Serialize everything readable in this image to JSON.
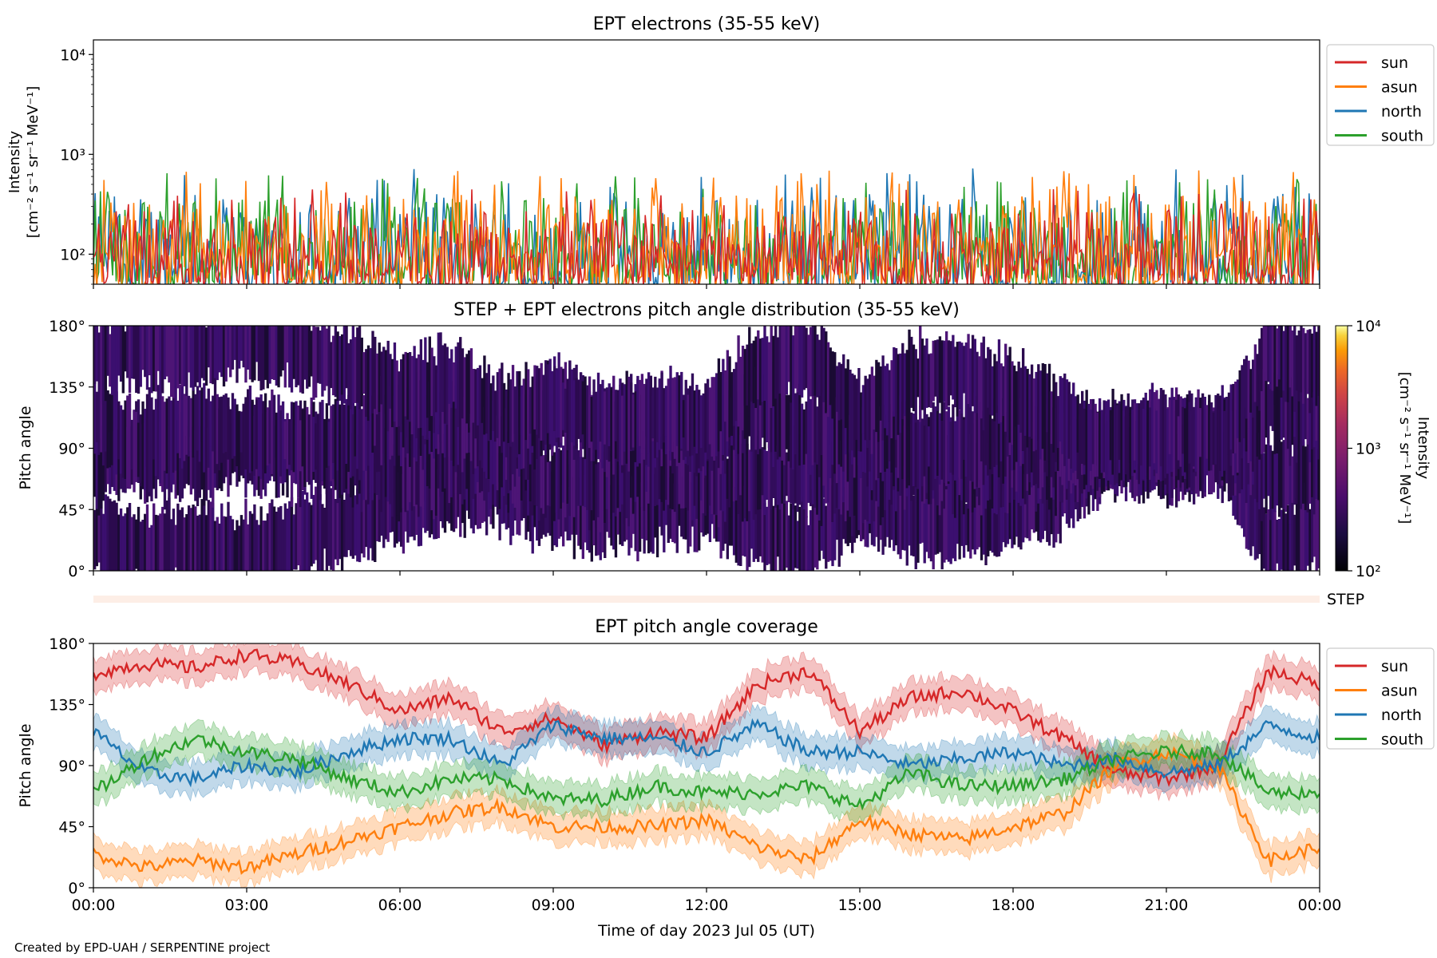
{
  "figure": {
    "footer": "Created by EPD-UAH / SERPENTINE project"
  },
  "colors": {
    "sun": "#d62728",
    "asun": "#ff7f0e",
    "north": "#1f77b4",
    "south": "#2ca02c",
    "pad_fill": "#3b0f6f",
    "step_band": "#fdeee6"
  },
  "chart_data": [
    {
      "type": "line",
      "title": "EPT electrons (35-55 keV)",
      "ylabel_line1": "Intensity",
      "ylabel_line2": "[cm⁻² s⁻¹ sr⁻¹ MeV⁻¹]",
      "yscale": "log",
      "ylim": [
        50,
        14000
      ],
      "ytick_labels": [
        "10²",
        "10³",
        "10⁴"
      ],
      "ytick_values": [
        100,
        1000,
        10000
      ],
      "legend_position": "outside-right-top",
      "series": [
        {
          "name": "sun",
          "color": "#d62728",
          "typical_range": [
            50,
            450
          ]
        },
        {
          "name": "asun",
          "color": "#ff7f0e",
          "typical_range": [
            50,
            700
          ]
        },
        {
          "name": "north",
          "color": "#1f77b4",
          "typical_range": [
            50,
            750
          ]
        },
        {
          "name": "south",
          "color": "#2ca02c",
          "typical_range": [
            50,
            650
          ]
        }
      ]
    },
    {
      "type": "heatmap",
      "title": "STEP + EPT electrons pitch angle distribution (35-55 keV)",
      "ylabel": "Pitch angle",
      "ylim": [
        0,
        180
      ],
      "ytick_labels": [
        "0°",
        "45°",
        "90°",
        "135°",
        "180°"
      ],
      "ytick_values": [
        0,
        45,
        90,
        135,
        180
      ],
      "colorbar": {
        "label_line1": "Intensity",
        "label_line2": "[cm⁻² s⁻¹ sr⁻¹ MeV⁻¹]",
        "scale": "log",
        "range": [
          100,
          10000
        ],
        "tick_labels": [
          "10²",
          "10³",
          "10⁴"
        ]
      },
      "step_label": "STEP"
    },
    {
      "type": "line",
      "title": "EPT pitch angle coverage",
      "ylabel": "Pitch angle",
      "xlabel": "Time of day 2023 Jul 05 (UT)",
      "xlim_hours": [
        0,
        24
      ],
      "xtick_labels": [
        "00:00",
        "03:00",
        "06:00",
        "09:00",
        "12:00",
        "15:00",
        "18:00",
        "21:00",
        "00:00"
      ],
      "ylim": [
        0,
        180
      ],
      "ytick_labels": [
        "0°",
        "45°",
        "90°",
        "135°",
        "180°"
      ],
      "ytick_values": [
        0,
        45,
        90,
        135,
        180
      ],
      "legend_position": "outside-right-top",
      "band_halfwidth_deg": 12,
      "x_hours": [
        0,
        1,
        2,
        3,
        4,
        5,
        6,
        7,
        8,
        9,
        10,
        11,
        12,
        13,
        14,
        15,
        16,
        17,
        18,
        19,
        20,
        21,
        22,
        23,
        24
      ],
      "series": [
        {
          "name": "sun",
          "color": "#d62728",
          "values": [
            158,
            165,
            162,
            172,
            165,
            150,
            130,
            140,
            115,
            125,
            105,
            115,
            110,
            150,
            160,
            115,
            140,
            145,
            130,
            110,
            85,
            80,
            90,
            160,
            150
          ]
        },
        {
          "name": "asun",
          "color": "#ff7f0e",
          "values": [
            25,
            15,
            20,
            15,
            25,
            35,
            45,
            55,
            60,
            45,
            45,
            45,
            50,
            30,
            20,
            50,
            40,
            35,
            45,
            55,
            90,
            100,
            90,
            20,
            30
          ]
        },
        {
          "name": "north",
          "color": "#1f77b4",
          "values": [
            115,
            85,
            80,
            90,
            85,
            100,
            110,
            110,
            90,
            120,
            110,
            110,
            100,
            120,
            100,
            100,
            90,
            95,
            100,
            90,
            95,
            85,
            90,
            120,
            110
          ]
        },
        {
          "name": "south",
          "color": "#2ca02c",
          "values": [
            70,
            95,
            110,
            100,
            95,
            80,
            70,
            80,
            80,
            65,
            65,
            75,
            70,
            70,
            75,
            60,
            85,
            75,
            75,
            80,
            95,
            100,
            100,
            70,
            70
          ]
        }
      ]
    }
  ]
}
